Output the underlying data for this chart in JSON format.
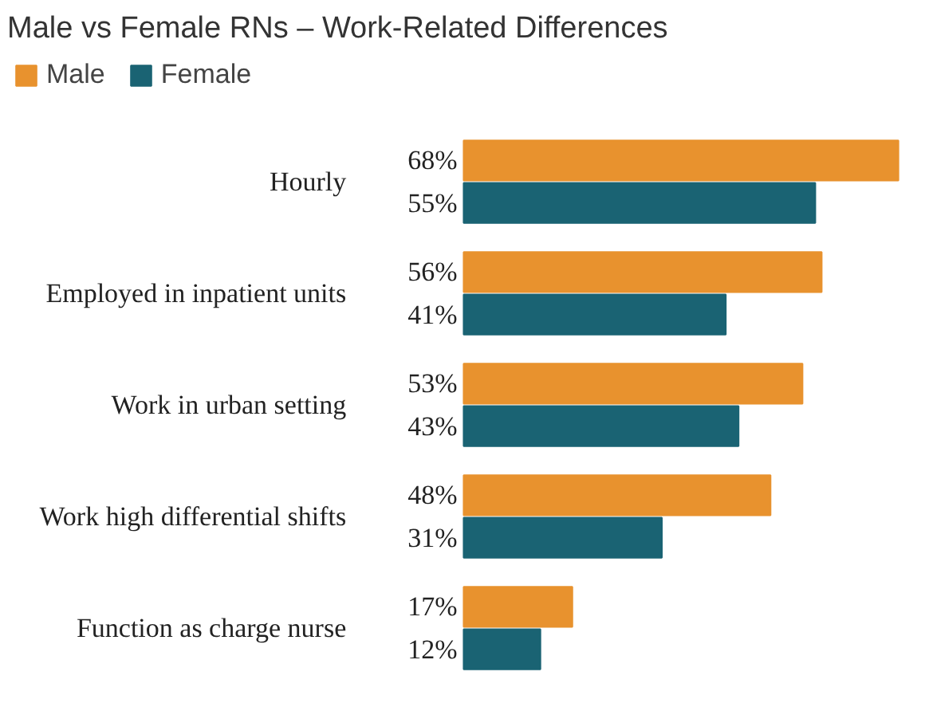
{
  "chart_data": {
    "type": "bar",
    "orientation": "horizontal",
    "title": "Male vs Female RNs – Work-Related Differences",
    "categories": [
      "Hourly",
      "Employed in inpatient units",
      "Work in urban setting",
      "Work high differential shifts",
      "Function as charge nurse"
    ],
    "series": [
      {
        "name": "Male",
        "color": "#e8922e",
        "values": [
          68,
          56,
          53,
          48,
          17
        ],
        "value_labels": [
          "68%",
          "56%",
          "53%",
          "48%",
          "17%"
        ]
      },
      {
        "name": "Female",
        "color": "#1a6373",
        "values": [
          55,
          41,
          43,
          31,
          12
        ],
        "value_labels": [
          "55%",
          "41%",
          "43%",
          "31%",
          "12%"
        ]
      }
    ],
    "legend": "top left"
  }
}
